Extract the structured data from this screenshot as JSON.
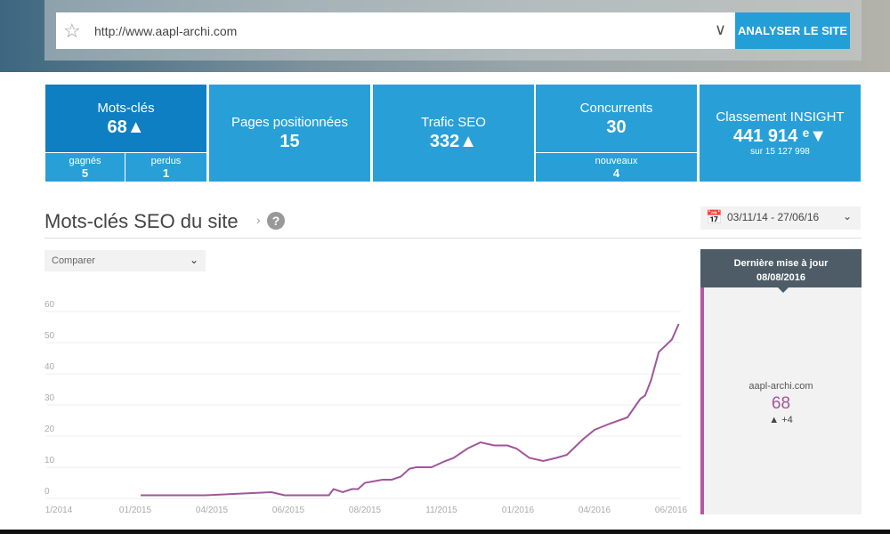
{
  "search": {
    "url": "http://www.aapl-archi.com",
    "button": "ANALYSER LE SITE"
  },
  "cards": {
    "keywords": {
      "title": "Mots-clés",
      "value": "68▲",
      "gained_label": "gagnés",
      "gained": "5",
      "lost_label": "perdus",
      "lost": "1"
    },
    "pages": {
      "title": "Pages positionnées",
      "value": "15"
    },
    "traffic": {
      "title": "Trafic SEO",
      "value": "332▲"
    },
    "competitors": {
      "title": "Concurrents",
      "value": "30",
      "new_label": "nouveaux",
      "new": "4"
    },
    "ranking": {
      "title": "Classement INSIGHT",
      "value": "441 914 ᵉ▼",
      "total": "sur 15 127 998"
    }
  },
  "section": {
    "title": "Mots-clés SEO du site",
    "help": "?",
    "date_range": "03/11/14 - 27/06/16",
    "compare": "Comparer"
  },
  "panel": {
    "header": "Dernière mise à jour",
    "date": "08/08/2016",
    "site": "aapl-archi.com",
    "value": "68",
    "delta": "▲ +4"
  },
  "chart_data": {
    "type": "line",
    "title": "Mots-clés SEO du site",
    "color": "#a0569a",
    "x_ticks": [
      "1/2014",
      "01/2015",
      "04/2015",
      "06/2015",
      "08/2015",
      "11/2015",
      "01/2016",
      "04/2016",
      "06/2016"
    ],
    "y_ticks": [
      0,
      10,
      20,
      30,
      40,
      50,
      60
    ],
    "ylim": [
      0,
      60
    ],
    "x": [
      1.07,
      1.91,
      2.78,
      2.95,
      3.53,
      3.59,
      3.71,
      3.83,
      3.91,
      4.0,
      4.23,
      4.35,
      4.47,
      4.58,
      4.67,
      4.87,
      5.05,
      5.16,
      5.34,
      5.51,
      5.69,
      5.86,
      5.98,
      6.15,
      6.33,
      6.5,
      6.64,
      6.85,
      7.0,
      7.2,
      7.43,
      7.6,
      7.66,
      7.74,
      7.84,
      8.01,
      8.1
    ],
    "y": [
      1,
      1,
      2,
      1,
      1,
      3,
      2,
      3,
      3,
      5,
      6,
      6,
      7,
      9.5,
      10,
      10,
      12,
      13,
      16,
      18,
      17,
      17,
      16,
      13,
      12,
      13,
      14,
      19,
      22,
      24,
      26,
      32,
      33,
      38,
      47,
      51,
      56
    ]
  }
}
